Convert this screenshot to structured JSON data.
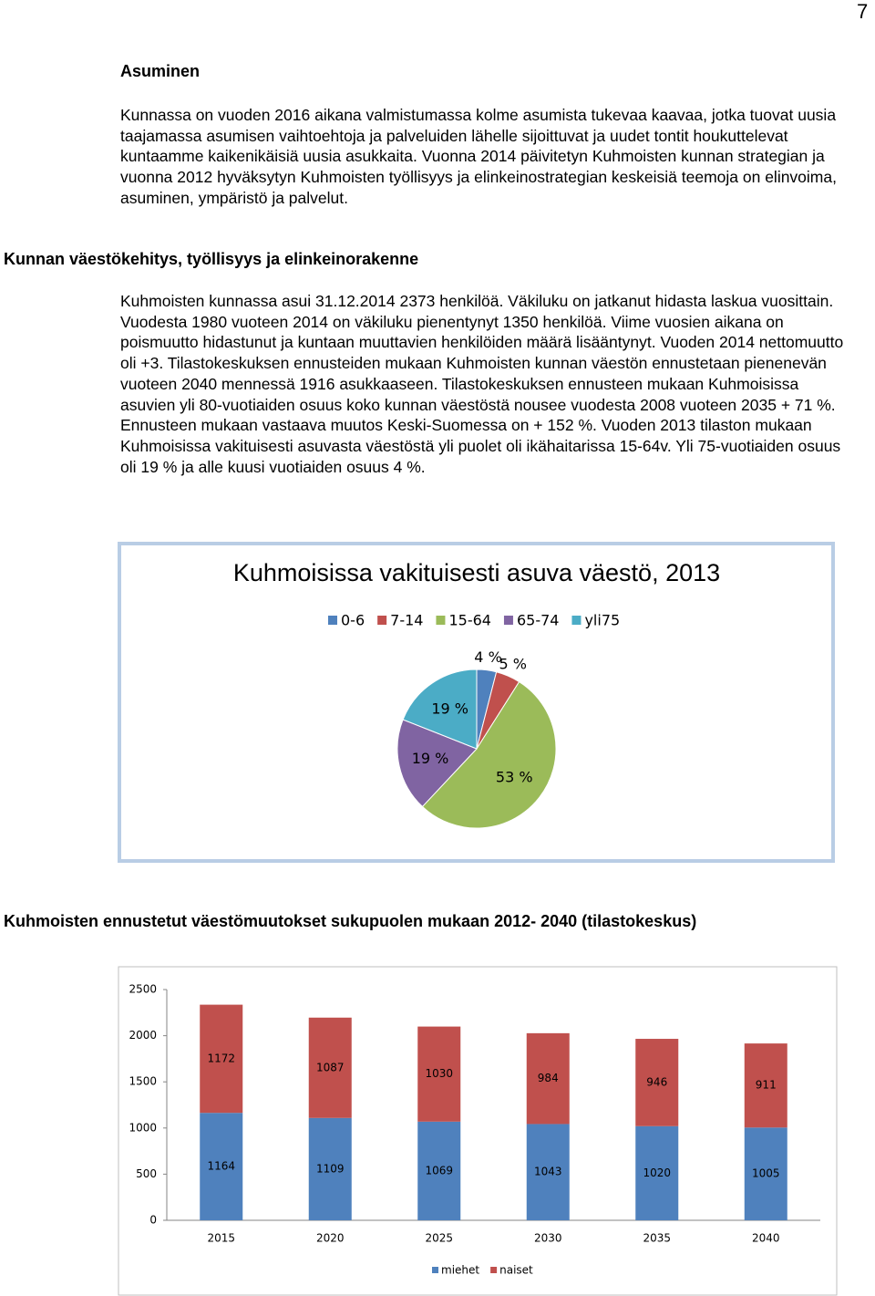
{
  "page_number": "7",
  "heading": "Asuminen",
  "paragraph_1": "Kunnassa on vuoden 2016 aikana valmistumassa kolme asumista tukevaa kaavaa, jotka tuovat uusia taajamassa asumisen vaihtoehtoja ja palveluiden lähelle sijoittuvat ja uudet tontit houkuttelevat kuntaamme kaikenikäisiä uusia asukkaita. Vuonna 2014 päivitetyn Kuhmoisten kunnan strategian ja vuonna 2012 hyväksytyn Kuhmoisten työllisyys ja elinkeinostrategian keskeisiä teemoja on elinvoima, asuminen, ympäristö ja palvelut.",
  "section_heading": "Kunnan väestökehitys, työllisyys ja elinkeinorakenne",
  "paragraph_2": "Kuhmoisten kunnassa asui 31.12.2014 2373 henkilöä. Väkiluku on jatkanut hidasta laskua vuosittain. Vuodesta 1980 vuoteen 2014 on väkiluku pienentynyt 1350 henkilöä. Viime vuosien aikana on poismuutto hidastunut ja kuntaan muuttavien henkilöiden määrä lisääntynyt. Vuoden 2014 nettomuutto oli +3. Tilastokeskuksen ennusteiden mukaan Kuhmoisten kunnan väestön ennustetaan pienenevän vuoteen 2040 mennessä 1916 asukkaaseen. Tilastokeskuksen ennusteen mukaan Kuhmoisissa asuvien yli 80-vuotiaiden osuus koko kunnan väestöstä nousee vuodesta 2008 vuoteen 2035 + 71 %. Ennusteen mukaan vastaava muutos Keski-Suomessa on + 152 %. Vuoden 2013 tilaston mukaan Kuhmoisissa vakituisesti asuvasta väestöstä yli puolet oli ikähaitarissa 15-64v. Yli 75-vuotiaiden osuus oli 19 % ja alle kuusi vuotiaiden osuus 4 %.",
  "chart_heading": "Kuhmoisten ennustetut väestömuutokset sukupuolen mukaan 2012- 2040 (tilastokeskus)",
  "chart_data": [
    {
      "type": "pie",
      "title": "Kuhmoisissa vakituisesti asuva väestö, 2013",
      "categories": [
        "0-6",
        "7-14",
        "15-64",
        "65-74",
        "yli75"
      ],
      "values": [
        4,
        5,
        53,
        19,
        19
      ],
      "value_labels": [
        "4 %",
        "5 %",
        "53 %",
        "19 %",
        "19 %"
      ],
      "colors": [
        "#4f81bd",
        "#c0504d",
        "#9bbb59",
        "#8064a2",
        "#4bacc6"
      ],
      "legend": "top"
    },
    {
      "type": "stacked_bar",
      "categories": [
        "2015",
        "2020",
        "2025",
        "2030",
        "2035",
        "2040"
      ],
      "series": [
        {
          "name": "miehet",
          "color": "#4f81bd",
          "values": [
            1164,
            1109,
            1069,
            1043,
            1020,
            1005
          ]
        },
        {
          "name": "naiset",
          "color": "#c0504d",
          "values": [
            1172,
            1087,
            1030,
            984,
            946,
            911
          ]
        }
      ],
      "ylim": [
        0,
        2500
      ],
      "yticks": [
        0,
        500,
        1000,
        1500,
        2000,
        2500
      ],
      "grid": false,
      "legend": "bottom"
    }
  ]
}
